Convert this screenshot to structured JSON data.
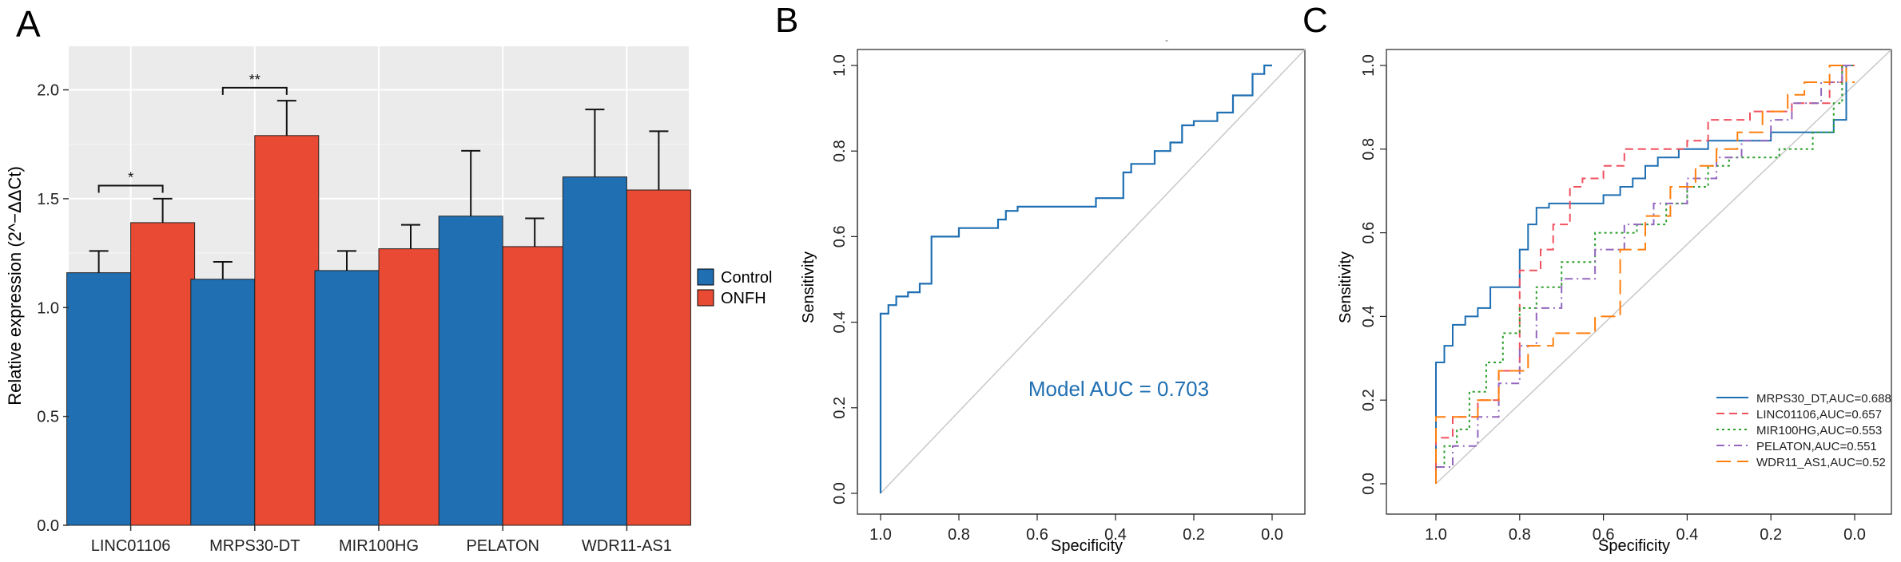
{
  "colors": {
    "control": "#1f6fb2",
    "onfh": "#e84a33",
    "roc_single": "#1f6fb2",
    "roc_mrps30": "#1f6fb2",
    "roc_linc01106": "#f0515f",
    "roc_mir100hg": "#2ca02c",
    "roc_pelaton": "#9467bd",
    "roc_wdr11": "#ff7f0e",
    "grid_bg": "#ebebeb",
    "diag": "#c8c8c8"
  },
  "panels": {
    "a": {
      "label": "A"
    },
    "b": {
      "label": "B",
      "tiny_title": "-"
    },
    "c": {
      "label": "C"
    }
  },
  "chart_data": [
    {
      "type": "bar",
      "panel": "A",
      "title": "",
      "xlabel": "",
      "ylabel": "Relative expression (2^−ΔΔCt)",
      "ylim": [
        0,
        2.2
      ],
      "yticks": [
        "0.0",
        "0.5",
        "1.0",
        "1.5",
        "2.0"
      ],
      "ytick_values": [
        0,
        0.5,
        1.0,
        1.5,
        2.0
      ],
      "categories": [
        "LINC01106",
        "MRPS30-DT",
        "MIR100HG",
        "PELATON",
        "WDR11-AS1"
      ],
      "series": [
        {
          "name": "Control",
          "values": [
            1.16,
            1.13,
            1.17,
            1.42,
            1.6
          ],
          "errors": [
            0.1,
            0.08,
            0.09,
            0.3,
            0.31
          ]
        },
        {
          "name": "ONFH",
          "values": [
            1.39,
            1.79,
            1.27,
            1.28,
            1.54
          ],
          "errors": [
            0.11,
            0.16,
            0.11,
            0.13,
            0.27
          ]
        }
      ],
      "significance": [
        {
          "category_index": 0,
          "label": "*"
        },
        {
          "category_index": 1,
          "label": "**"
        }
      ],
      "legend": {
        "position": "right",
        "entries": [
          "Control",
          "ONFH"
        ]
      }
    },
    {
      "type": "line",
      "panel": "B",
      "title": "",
      "xlabel": "Specificity",
      "ylabel": "Sensitivity",
      "xlim": [
        1.0,
        0.0
      ],
      "ylim": [
        0.0,
        1.0
      ],
      "xticks": [
        "1.0",
        "0.8",
        "0.6",
        "0.4",
        "0.2",
        "0.0"
      ],
      "yticks": [
        "0.0",
        "0.2",
        "0.4",
        "0.6",
        "0.8",
        "1.0"
      ],
      "annotation": "Model AUC = 0.703",
      "series": [
        {
          "name": "Model",
          "x": [
            1.0,
            1.0,
            0.98,
            0.98,
            0.96,
            0.96,
            0.93,
            0.93,
            0.9,
            0.9,
            0.87,
            0.87,
            0.8,
            0.8,
            0.7,
            0.7,
            0.68,
            0.68,
            0.65,
            0.65,
            0.45,
            0.45,
            0.38,
            0.38,
            0.36,
            0.36,
            0.3,
            0.3,
            0.26,
            0.26,
            0.23,
            0.23,
            0.2,
            0.2,
            0.14,
            0.14,
            0.1,
            0.1,
            0.05,
            0.05,
            0.02,
            0.02,
            0.0
          ],
          "y": [
            0.0,
            0.42,
            0.42,
            0.44,
            0.44,
            0.46,
            0.46,
            0.47,
            0.47,
            0.49,
            0.49,
            0.6,
            0.6,
            0.62,
            0.62,
            0.64,
            0.64,
            0.66,
            0.66,
            0.67,
            0.67,
            0.69,
            0.69,
            0.75,
            0.75,
            0.77,
            0.77,
            0.8,
            0.8,
            0.82,
            0.82,
            0.86,
            0.86,
            0.87,
            0.87,
            0.89,
            0.89,
            0.93,
            0.93,
            0.98,
            0.98,
            1.0,
            1.0
          ]
        }
      ]
    },
    {
      "type": "line",
      "panel": "C",
      "title": "",
      "xlabel": "Specificity",
      "ylabel": "Sensitivity",
      "xlim": [
        1.0,
        0.0
      ],
      "ylim": [
        0.0,
        1.0
      ],
      "xticks": [
        "1.0",
        "0.8",
        "0.6",
        "0.4",
        "0.2",
        "0.0"
      ],
      "yticks": [
        "0.0",
        "0.2",
        "0.4",
        "0.6",
        "0.8",
        "1.0"
      ],
      "legend": {
        "position": "bottom-right"
      },
      "series": [
        {
          "name": "MRPS30_DT,AUC=0.688",
          "style": "solid",
          "x": [
            1.0,
            1.0,
            0.98,
            0.98,
            0.96,
            0.96,
            0.93,
            0.93,
            0.9,
            0.9,
            0.87,
            0.87,
            0.8,
            0.8,
            0.78,
            0.78,
            0.76,
            0.76,
            0.73,
            0.73,
            0.6,
            0.6,
            0.56,
            0.56,
            0.53,
            0.53,
            0.5,
            0.5,
            0.47,
            0.47,
            0.42,
            0.42,
            0.35,
            0.35,
            0.2,
            0.2,
            0.05,
            0.05,
            0.02,
            0.02,
            0.0
          ],
          "y": [
            0.0,
            0.29,
            0.29,
            0.33,
            0.33,
            0.38,
            0.38,
            0.4,
            0.4,
            0.42,
            0.42,
            0.47,
            0.47,
            0.56,
            0.56,
            0.62,
            0.62,
            0.66,
            0.66,
            0.67,
            0.67,
            0.69,
            0.69,
            0.71,
            0.71,
            0.73,
            0.73,
            0.76,
            0.76,
            0.78,
            0.78,
            0.8,
            0.8,
            0.82,
            0.82,
            0.84,
            0.84,
            0.87,
            0.87,
            1.0,
            1.0
          ]
        },
        {
          "name": "LINC01106,AUC=0.657",
          "style": "dashed",
          "x": [
            1.0,
            1.0,
            0.96,
            0.96,
            0.9,
            0.9,
            0.85,
            0.85,
            0.8,
            0.8,
            0.75,
            0.75,
            0.72,
            0.72,
            0.68,
            0.68,
            0.65,
            0.65,
            0.6,
            0.6,
            0.55,
            0.55,
            0.4,
            0.4,
            0.35,
            0.35,
            0.25,
            0.25,
            0.15,
            0.15,
            0.06,
            0.06,
            0.03,
            0.03,
            0.0
          ],
          "y": [
            0.0,
            0.11,
            0.11,
            0.16,
            0.16,
            0.2,
            0.2,
            0.27,
            0.27,
            0.51,
            0.51,
            0.56,
            0.56,
            0.62,
            0.62,
            0.71,
            0.71,
            0.73,
            0.73,
            0.76,
            0.76,
            0.8,
            0.8,
            0.82,
            0.82,
            0.87,
            0.87,
            0.89,
            0.89,
            0.91,
            0.91,
            0.96,
            0.96,
            1.0,
            1.0
          ]
        },
        {
          "name": "MIR100HG,AUC=0.553",
          "style": "dotted",
          "x": [
            1.0,
            1.0,
            0.98,
            0.98,
            0.95,
            0.95,
            0.92,
            0.92,
            0.88,
            0.88,
            0.84,
            0.84,
            0.8,
            0.8,
            0.76,
            0.76,
            0.7,
            0.7,
            0.62,
            0.62,
            0.52,
            0.52,
            0.45,
            0.45,
            0.4,
            0.4,
            0.35,
            0.35,
            0.3,
            0.3,
            0.18,
            0.18,
            0.1,
            0.1,
            0.05,
            0.05,
            0.03,
            0.03,
            0.0
          ],
          "y": [
            0.0,
            0.04,
            0.04,
            0.09,
            0.09,
            0.13,
            0.13,
            0.22,
            0.22,
            0.29,
            0.29,
            0.36,
            0.36,
            0.42,
            0.42,
            0.47,
            0.47,
            0.53,
            0.53,
            0.6,
            0.6,
            0.62,
            0.62,
            0.67,
            0.67,
            0.71,
            0.71,
            0.76,
            0.76,
            0.78,
            0.78,
            0.8,
            0.8,
            0.84,
            0.84,
            0.91,
            0.91,
            1.0,
            1.0
          ]
        },
        {
          "name": "PELATON,AUC=0.551",
          "style": "dashdot",
          "x": [
            1.0,
            1.0,
            0.96,
            0.96,
            0.9,
            0.9,
            0.85,
            0.85,
            0.8,
            0.8,
            0.76,
            0.76,
            0.7,
            0.7,
            0.62,
            0.62,
            0.55,
            0.55,
            0.48,
            0.48,
            0.4,
            0.4,
            0.33,
            0.33,
            0.27,
            0.27,
            0.2,
            0.2,
            0.15,
            0.15,
            0.08,
            0.08,
            0.03,
            0.03,
            0.0
          ],
          "y": [
            0.0,
            0.04,
            0.04,
            0.09,
            0.09,
            0.16,
            0.16,
            0.24,
            0.24,
            0.33,
            0.33,
            0.42,
            0.42,
            0.49,
            0.49,
            0.56,
            0.56,
            0.62,
            0.62,
            0.67,
            0.67,
            0.73,
            0.73,
            0.78,
            0.78,
            0.82,
            0.82,
            0.87,
            0.87,
            0.91,
            0.91,
            0.96,
            0.96,
            1.0,
            1.0
          ]
        },
        {
          "name": "WDR11_AS1,AUC=0.52",
          "style": "longdash",
          "x": [
            1.0,
            1.0,
            0.9,
            0.9,
            0.85,
            0.85,
            0.78,
            0.78,
            0.72,
            0.72,
            0.62,
            0.62,
            0.56,
            0.56,
            0.5,
            0.5,
            0.44,
            0.44,
            0.38,
            0.38,
            0.33,
            0.33,
            0.28,
            0.28,
            0.22,
            0.22,
            0.16,
            0.16,
            0.12,
            0.12,
            0.06,
            0.06,
            0.02,
            0.02,
            0.0
          ],
          "y": [
            0.0,
            0.16,
            0.16,
            0.2,
            0.2,
            0.27,
            0.27,
            0.33,
            0.33,
            0.36,
            0.36,
            0.4,
            0.4,
            0.56,
            0.56,
            0.64,
            0.64,
            0.71,
            0.71,
            0.76,
            0.76,
            0.8,
            0.8,
            0.84,
            0.84,
            0.89,
            0.89,
            0.93,
            0.93,
            0.96,
            0.96,
            1.0,
            1.0,
            0.96,
            0.96
          ]
        }
      ]
    }
  ]
}
